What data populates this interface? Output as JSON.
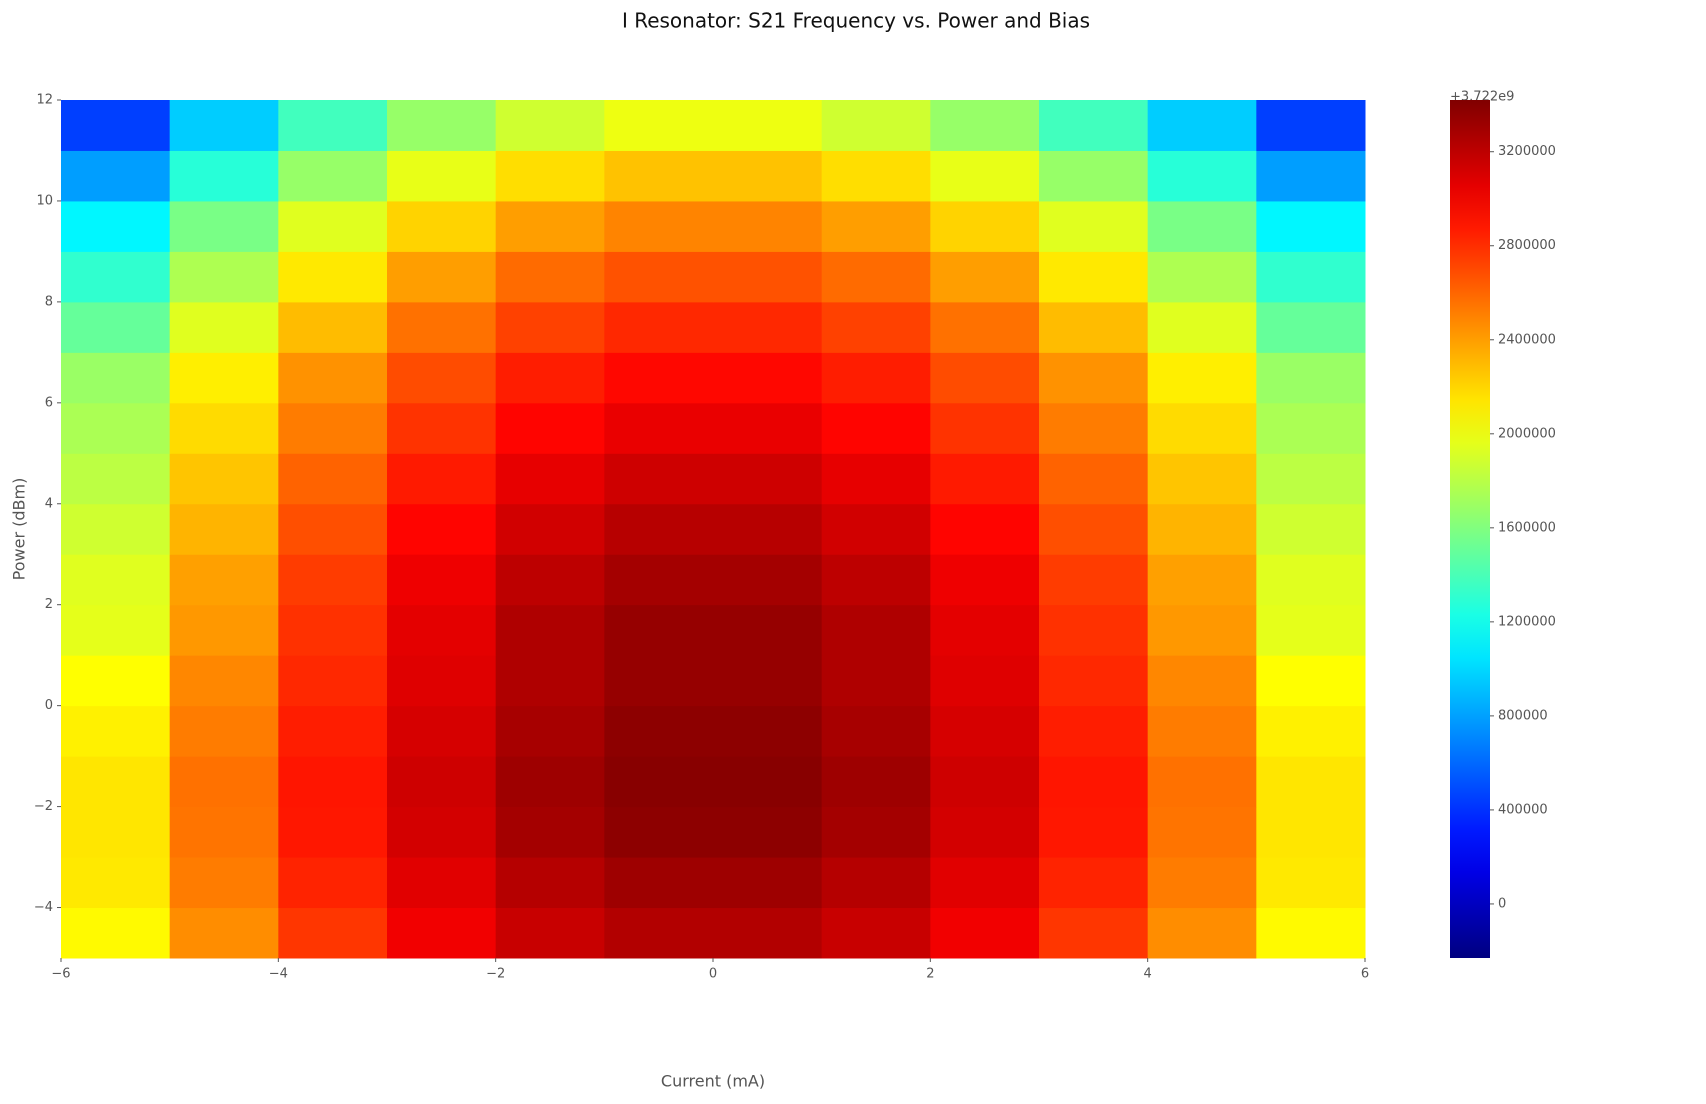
{
  "chart_data": {
    "type": "heatmap",
    "title": "I Resonator: S21 Frequency vs. Power and Bias",
    "x_label": "Current (mA)",
    "y_label": "Power (dBm)",
    "colormap": "jet",
    "xbins": [
      -6,
      -5,
      -4,
      -3,
      -2,
      -1,
      0,
      1,
      2,
      3,
      4,
      5,
      6
    ],
    "ybins": [
      -5,
      -4,
      -3,
      -2,
      -1,
      0,
      1,
      2,
      3,
      4,
      5,
      6,
      7,
      8,
      9,
      10,
      11,
      12
    ],
    "values": [
      [
        2070000,
        2460000,
        2770000,
        3010000,
        3160000,
        3240000,
        3240000,
        3160000,
        3010000,
        2770000,
        2460000,
        2070000
      ],
      [
        2130000,
        2520000,
        2840000,
        3070000,
        3230000,
        3310000,
        3310000,
        3230000,
        3070000,
        2840000,
        2520000,
        2130000
      ],
      [
        2140000,
        2550000,
        2880000,
        3120000,
        3290000,
        3370000,
        3370000,
        3290000,
        3120000,
        2880000,
        2550000,
        2140000
      ],
      [
        2140000,
        2560000,
        2890000,
        3140000,
        3310000,
        3390000,
        3390000,
        3310000,
        3140000,
        2890000,
        2560000,
        2140000
      ],
      [
        2100000,
        2520000,
        2860000,
        3110000,
        3280000,
        3370000,
        3370000,
        3280000,
        3110000,
        2860000,
        2520000,
        2100000
      ],
      [
        2050000,
        2480000,
        2820000,
        3080000,
        3250000,
        3340000,
        3340000,
        3250000,
        3080000,
        2820000,
        2480000,
        2050000
      ],
      [
        1960000,
        2420000,
        2790000,
        3060000,
        3250000,
        3340000,
        3340000,
        3250000,
        3060000,
        2790000,
        2420000,
        1960000
      ],
      [
        1940000,
        2390000,
        2750000,
        3020000,
        3200000,
        3290000,
        3290000,
        3200000,
        3020000,
        2750000,
        2390000,
        1940000
      ],
      [
        1880000,
        2320000,
        2680000,
        2950000,
        3130000,
        3220000,
        3220000,
        3130000,
        2950000,
        2680000,
        2320000,
        1880000
      ],
      [
        1810000,
        2260000,
        2610000,
        2870000,
        3050000,
        3140000,
        3140000,
        3050000,
        2870000,
        2610000,
        2260000,
        1810000
      ],
      [
        1750000,
        2180000,
        2520000,
        2780000,
        2950000,
        3040000,
        3040000,
        2950000,
        2780000,
        2520000,
        2180000,
        1750000
      ],
      [
        1690000,
        2110000,
        2440000,
        2690000,
        2860000,
        2940000,
        2940000,
        2860000,
        2690000,
        2440000,
        2110000,
        1690000
      ],
      [
        1500000,
        1940000,
        2290000,
        2560000,
        2730000,
        2820000,
        2820000,
        2730000,
        2560000,
        2290000,
        1940000,
        1500000
      ],
      [
        1310000,
        1760000,
        2130000,
        2400000,
        2580000,
        2670000,
        2670000,
        2580000,
        2400000,
        2130000,
        1760000,
        1310000
      ],
      [
        1110000,
        1570000,
        1940000,
        2210000,
        2400000,
        2490000,
        2490000,
        2400000,
        2210000,
        1940000,
        1570000,
        1110000
      ],
      [
        790000,
        1280000,
        1680000,
        1970000,
        2170000,
        2270000,
        2270000,
        2170000,
        1970000,
        1680000,
        1280000,
        790000
      ],
      [
        450000,
        960000,
        1370000,
        1680000,
        1880000,
        1990000,
        1990000,
        1880000,
        1680000,
        1370000,
        960000,
        450000
      ]
    ],
    "xlim": [
      -6,
      6
    ],
    "xticks": [
      {
        "value": -6,
        "label": "−6"
      },
      {
        "value": -4,
        "label": "−4"
      },
      {
        "value": -2,
        "label": "−2"
      },
      0,
      2,
      4,
      6
    ],
    "ylim": [
      -5,
      12
    ],
    "yticks": [
      {
        "value": -4,
        "label": "−4"
      },
      {
        "value": -2,
        "label": "−2"
      },
      0,
      2,
      4,
      6,
      8,
      10,
      12
    ],
    "colorbar_offset_label": "+3.722e9",
    "clim": [
      -230000,
      3420000
    ],
    "cticks": [
      0,
      400000,
      800000,
      1200000,
      1600000,
      2000000,
      2400000,
      2800000,
      3200000
    ]
  }
}
